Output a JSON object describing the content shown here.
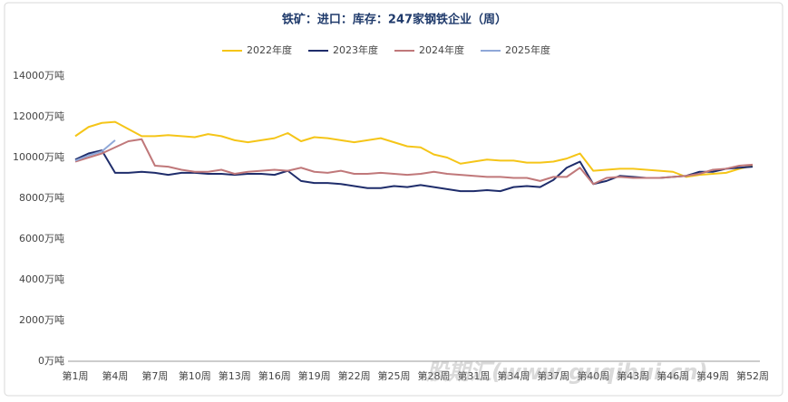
{
  "chart_data": {
    "type": "line",
    "title": "铁矿：进口：库存：247家钢铁企业（周）",
    "watermark": "股期汇(www.guqihui.cn)",
    "categories": [
      "第1周",
      null,
      null,
      "第4周",
      null,
      null,
      "第7周",
      null,
      null,
      "第10周",
      null,
      null,
      "第13周",
      null,
      null,
      "第16周",
      null,
      null,
      "第19周",
      null,
      null,
      "第22周",
      null,
      null,
      "第25周",
      null,
      null,
      "第28周",
      null,
      null,
      "第31周",
      null,
      null,
      "第34周",
      null,
      null,
      "第37周",
      null,
      null,
      "第40周",
      null,
      null,
      "第43周",
      null,
      null,
      "第46周",
      null,
      null,
      "第49周",
      null,
      null,
      "第52周"
    ],
    "series": [
      {
        "name": "2022年度",
        "color": "#f5c518",
        "values": [
          11050,
          11500,
          11700,
          11750,
          11400,
          11050,
          11050,
          11100,
          11050,
          11000,
          11150,
          11050,
          10850,
          10750,
          10850,
          10950,
          11200,
          10800,
          11000,
          10950,
          10850,
          10750,
          10850,
          10950,
          10750,
          10550,
          10500,
          10150,
          10000,
          9700,
          9800,
          9900,
          9850,
          9850,
          9750,
          9750,
          9800,
          9950,
          10200,
          9350,
          9400,
          9450,
          9450,
          9400,
          9350,
          9300,
          9050,
          9150,
          9200,
          9250,
          9450,
          9600
        ]
      },
      {
        "name": "2023年度",
        "color": "#1f2d6b",
        "values": [
          9900,
          10200,
          10350,
          9250,
          9250,
          9300,
          9250,
          9150,
          9250,
          9250,
          9200,
          9200,
          9150,
          9200,
          9200,
          9150,
          9350,
          8850,
          8750,
          8750,
          8700,
          8600,
          8500,
          8500,
          8600,
          8550,
          8650,
          8550,
          8450,
          8350,
          8350,
          8400,
          8350,
          8550,
          8600,
          8550,
          8900,
          9500,
          9800,
          8700,
          8850,
          9100,
          9050,
          9000,
          9000,
          9050,
          9100,
          9300,
          9300,
          9450,
          9500,
          9550
        ]
      },
      {
        "name": "2024年度",
        "color": "#c0787a",
        "values": [
          9800,
          10000,
          10200,
          10500,
          10800,
          10900,
          9600,
          9550,
          9400,
          9300,
          9300,
          9400,
          9200,
          9300,
          9350,
          9400,
          9350,
          9500,
          9300,
          9250,
          9350,
          9200,
          9200,
          9250,
          9200,
          9150,
          9200,
          9300,
          9200,
          9150,
          9100,
          9050,
          9050,
          9000,
          9000,
          8850,
          9050,
          9050,
          9500,
          8700,
          9000,
          9050,
          9000,
          9000,
          9000,
          9050,
          9100,
          9200,
          9400,
          9450,
          9600,
          9650
        ]
      },
      {
        "name": "2025年度",
        "color": "#8fa8d8",
        "values": [
          9850,
          10100,
          10300,
          10850,
          null,
          null,
          null,
          null,
          null,
          null,
          null,
          null,
          null,
          null,
          null,
          null,
          null,
          null,
          null,
          null,
          null,
          null,
          null,
          null,
          null,
          null,
          null,
          null,
          null,
          null,
          null,
          null,
          null,
          null,
          null,
          null,
          null,
          null,
          null,
          null,
          null,
          null,
          null,
          null,
          null,
          null,
          null,
          null,
          null,
          null,
          null,
          null
        ]
      }
    ],
    "ylim": [
      0,
      14000
    ],
    "yticks": [
      {
        "value": 0,
        "label": "0万吨"
      },
      {
        "value": 2000,
        "label": "2000万吨"
      },
      {
        "value": 4000,
        "label": "4000万吨"
      },
      {
        "value": 6000,
        "label": "6000万吨"
      },
      {
        "value": 8000,
        "label": "8000万吨"
      },
      {
        "value": 10000,
        "label": "10000万吨"
      },
      {
        "value": 12000,
        "label": "12000万吨"
      },
      {
        "value": 14000,
        "label": "14000万吨"
      }
    ],
    "grid": false
  }
}
